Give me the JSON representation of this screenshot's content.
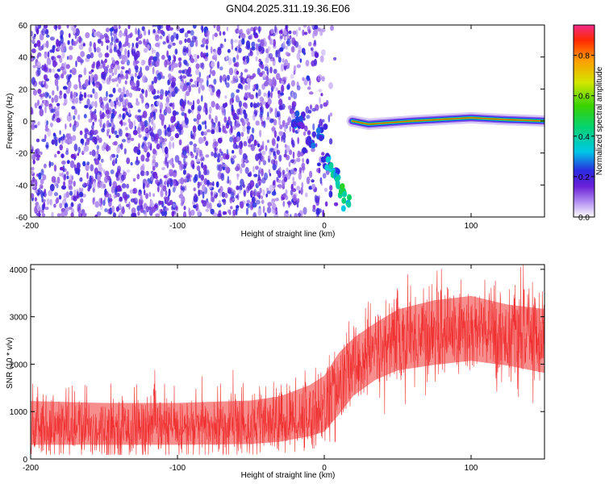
{
  "title": "GN04.2025.311.19.36.E06",
  "chart_data": [
    {
      "type": "heatmap",
      "xlabel": "Height of straight line (km)",
      "ylabel": "Frequency (Hz)",
      "xlim": [
        -200,
        150
      ],
      "ylim": [
        -60,
        60
      ],
      "xticks": [
        -200,
        -100,
        0,
        100
      ],
      "yticks": [
        -60,
        -40,
        -20,
        0,
        20,
        40,
        60
      ],
      "x_tick_labels": [
        "-200",
        "-100",
        "0",
        "100"
      ],
      "y_tick_labels": [
        "-60",
        "-40",
        "-20",
        "0",
        "20",
        "40",
        "60"
      ],
      "colorbar": {
        "label": "Normalized spectral amplitude",
        "range": [
          0,
          0.95
        ],
        "ticks": [
          0,
          0.2,
          0.4,
          0.6,
          0.8
        ],
        "tick_labels": [
          "0.0",
          "0.2",
          "0.4",
          "0.6",
          "0.8"
        ]
      },
      "noise_region": {
        "x_range": [
          -200,
          10
        ],
        "frequency_range": [
          -60,
          60
        ],
        "amplitude_range": [
          0.05,
          0.25
        ]
      },
      "track_points": [
        {
          "x": -20,
          "y": 0,
          "amp": 0.3
        },
        {
          "x": -16,
          "y": -2,
          "amp": 0.25
        },
        {
          "x": -10,
          "y": -14,
          "amp": 0.3
        },
        {
          "x": -3,
          "y": -7,
          "amp": 0.3
        },
        {
          "x": 2,
          "y": -25,
          "amp": 0.35
        },
        {
          "x": 5,
          "y": -31,
          "amp": 0.45
        },
        {
          "x": 9,
          "y": -35,
          "amp": 0.4
        },
        {
          "x": 12,
          "y": -43,
          "amp": 0.5
        },
        {
          "x": 16,
          "y": -52,
          "amp": 0.45
        }
      ],
      "line_track": [
        {
          "x": 19,
          "y": 0
        },
        {
          "x": 30,
          "y": -2
        },
        {
          "x": 45,
          "y": -1
        },
        {
          "x": 60,
          "y": 0
        },
        {
          "x": 80,
          "y": 1
        },
        {
          "x": 100,
          "y": 2
        },
        {
          "x": 120,
          "y": 1
        },
        {
          "x": 150,
          "y": 0
        }
      ]
    },
    {
      "type": "line",
      "xlabel": "Height of straight line (km)",
      "ylabel": "SNR (10 * v/v)",
      "xlim": [
        -200,
        150
      ],
      "ylim": [
        0,
        4100
      ],
      "xticks": [
        -200,
        -100,
        0,
        100
      ],
      "yticks": [
        0,
        1000,
        2000,
        3000,
        4000
      ],
      "x_tick_labels": [
        "-200",
        "-100",
        "0",
        "100"
      ],
      "y_tick_labels": [
        "0",
        "1000",
        "2000",
        "3000",
        "4000"
      ],
      "color": "#f03232",
      "envelope": [
        {
          "x": -200,
          "low": 150,
          "mean": 650,
          "high": 1350
        },
        {
          "x": -150,
          "low": 150,
          "mean": 650,
          "high": 1300
        },
        {
          "x": -100,
          "low": 150,
          "mean": 650,
          "high": 1300
        },
        {
          "x": -50,
          "low": 150,
          "mean": 700,
          "high": 1350
        },
        {
          "x": -30,
          "low": 200,
          "mean": 750,
          "high": 1450
        },
        {
          "x": -10,
          "low": 300,
          "mean": 900,
          "high": 1700
        },
        {
          "x": 0,
          "low": 350,
          "mean": 1100,
          "high": 1900
        },
        {
          "x": 10,
          "low": 700,
          "mean": 1500,
          "high": 2400
        },
        {
          "x": 20,
          "low": 1100,
          "mean": 1900,
          "high": 2700
        },
        {
          "x": 35,
          "low": 1400,
          "mean": 2300,
          "high": 3000
        },
        {
          "x": 50,
          "low": 1600,
          "mean": 2500,
          "high": 3300
        },
        {
          "x": 75,
          "low": 1700,
          "mean": 2650,
          "high": 3500
        },
        {
          "x": 100,
          "low": 1800,
          "mean": 2700,
          "high": 3600
        },
        {
          "x": 125,
          "low": 1700,
          "mean": 2600,
          "high": 3400
        },
        {
          "x": 150,
          "low": 1500,
          "mean": 2550,
          "high": 3300
        }
      ]
    }
  ]
}
